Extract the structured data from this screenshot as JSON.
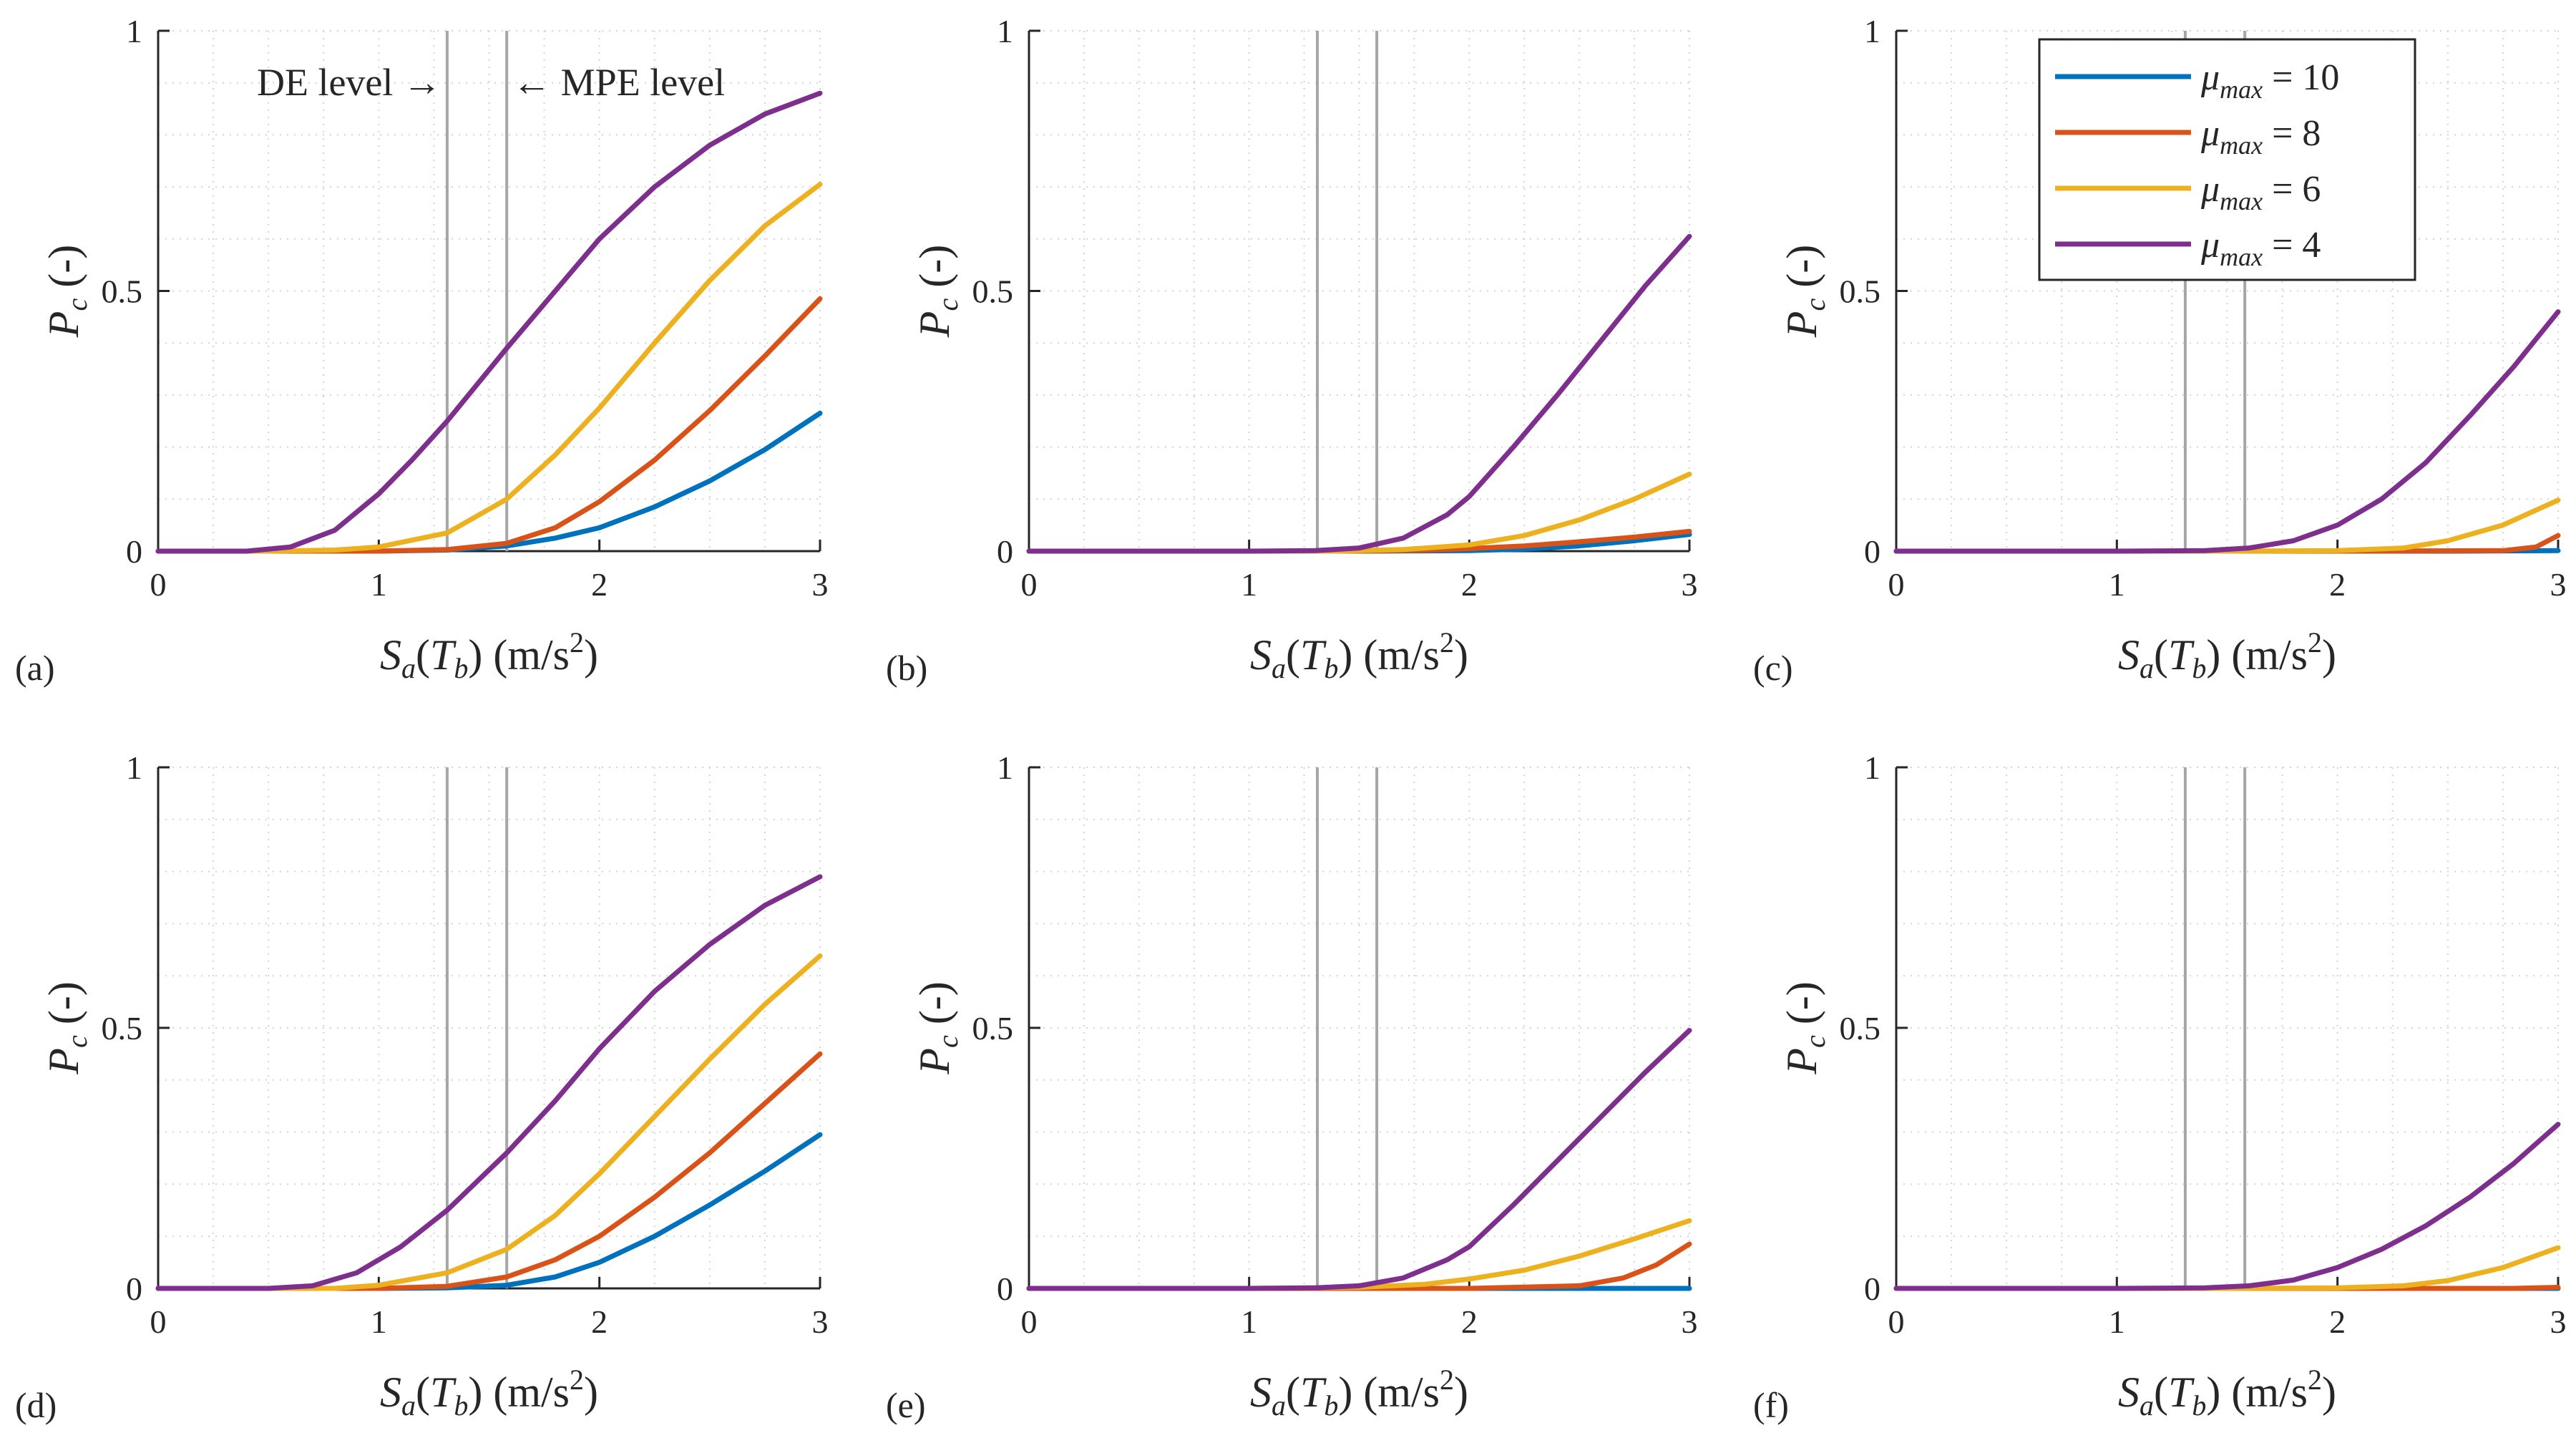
{
  "chart_data": {
    "type": "line",
    "xlim": [
      0,
      3
    ],
    "ylim": [
      0,
      1
    ],
    "x_ticks": [
      "0",
      "1",
      "2",
      "3"
    ],
    "y_ticks": [
      "0",
      "0.5",
      "1"
    ],
    "grid": "dotted",
    "xlabel": {
      "main": "S",
      "sub": "a",
      "paren_open": "(",
      "main2": "T",
      "sub2": "b",
      "paren_close": ")",
      "units_open": "(m/s",
      "units_sup": "2",
      "units_close": ")"
    },
    "ylabel": {
      "main": "P",
      "sub": "c",
      "rest": "(-)"
    },
    "reference_lines": {
      "de_level": 1.31,
      "mpe_level": 1.58
    },
    "annotations": {
      "de_text": "DE level →",
      "mpe_text": "← MPE level"
    },
    "legend": {
      "placement": "top-right of panel (c)",
      "entries": [
        {
          "symbol": "μ",
          "sub": "max",
          "value": "= 10",
          "color": "#0072BD"
        },
        {
          "symbol": "μ",
          "sub": "max",
          "value": "= 8",
          "color": "#D95319"
        },
        {
          "symbol": "μ",
          "sub": "max",
          "value": "= 6",
          "color": "#EDB120"
        },
        {
          "symbol": "μ",
          "sub": "max",
          "value": "= 4",
          "color": "#7E2F8E"
        }
      ]
    },
    "panels": [
      {
        "label": "(a)",
        "series": [
          {
            "name": "mu_max = 10",
            "color": "#0072BD",
            "x": [
              0,
              0.5,
              1.0,
              1.31,
              1.58,
              1.8,
              2.0,
              2.25,
              2.5,
              2.75,
              3.0
            ],
            "y": [
              0,
              0,
              0,
              0.002,
              0.01,
              0.025,
              0.045,
              0.085,
              0.135,
              0.195,
              0.265
            ]
          },
          {
            "name": "mu_max = 8",
            "color": "#D95319",
            "x": [
              0,
              0.5,
              1.0,
              1.31,
              1.58,
              1.8,
              2.0,
              2.25,
              2.5,
              2.75,
              3.0
            ],
            "y": [
              0,
              0,
              0,
              0.003,
              0.015,
              0.045,
              0.095,
              0.175,
              0.27,
              0.375,
              0.485
            ]
          },
          {
            "name": "mu_max = 6",
            "color": "#EDB120",
            "x": [
              0,
              0.5,
              0.8,
              1.0,
              1.31,
              1.58,
              1.8,
              2.0,
              2.25,
              2.5,
              2.75,
              3.0
            ],
            "y": [
              0,
              0,
              0.002,
              0.008,
              0.035,
              0.1,
              0.185,
              0.275,
              0.4,
              0.52,
              0.625,
              0.705
            ]
          },
          {
            "name": "mu_max = 4",
            "color": "#7E2F8E",
            "x": [
              0,
              0.4,
              0.6,
              0.8,
              1.0,
              1.15,
              1.31,
              1.58,
              1.8,
              2.0,
              2.25,
              2.5,
              2.75,
              3.0
            ],
            "y": [
              0,
              0,
              0.008,
              0.04,
              0.11,
              0.175,
              0.25,
              0.39,
              0.5,
              0.6,
              0.7,
              0.78,
              0.84,
              0.88
            ]
          }
        ]
      },
      {
        "label": "(b)",
        "series": [
          {
            "name": "mu_max = 10",
            "color": "#0072BD",
            "x": [
              0,
              1.0,
              1.5,
              2.0,
              2.25,
              2.5,
              2.75,
              3.0
            ],
            "y": [
              0,
              0,
              0,
              0.001,
              0.004,
              0.01,
              0.02,
              0.032
            ]
          },
          {
            "name": "mu_max = 8",
            "color": "#D95319",
            "x": [
              0,
              1.0,
              1.5,
              1.8,
              2.0,
              2.25,
              2.5,
              2.75,
              3.0
            ],
            "y": [
              0,
              0,
              0,
              0.002,
              0.005,
              0.01,
              0.018,
              0.027,
              0.038
            ]
          },
          {
            "name": "mu_max = 6",
            "color": "#EDB120",
            "x": [
              0,
              1.0,
              1.4,
              1.7,
              2.0,
              2.25,
              2.5,
              2.75,
              3.0
            ],
            "y": [
              0,
              0,
              0,
              0.003,
              0.012,
              0.03,
              0.06,
              0.1,
              0.148
            ]
          },
          {
            "name": "mu_max = 4",
            "color": "#7E2F8E",
            "x": [
              0,
              1.0,
              1.3,
              1.5,
              1.7,
              1.9,
              2.0,
              2.2,
              2.4,
              2.6,
              2.8,
              3.0
            ],
            "y": [
              0,
              0,
              0.001,
              0.006,
              0.025,
              0.07,
              0.105,
              0.2,
              0.3,
              0.405,
              0.51,
              0.605
            ]
          }
        ]
      },
      {
        "label": "(c)",
        "series": [
          {
            "name": "mu_max = 10",
            "color": "#0072BD",
            "x": [
              0,
              1.0,
              2.0,
              2.5,
              3.0
            ],
            "y": [
              0,
              0,
              0,
              0,
              0.001
            ]
          },
          {
            "name": "mu_max = 8",
            "color": "#D95319",
            "x": [
              0,
              2.0,
              2.75,
              2.9,
              3.0
            ],
            "y": [
              0,
              0,
              0.001,
              0.008,
              0.03
            ]
          },
          {
            "name": "mu_max = 6",
            "color": "#EDB120",
            "x": [
              0,
              1.5,
              2.0,
              2.3,
              2.5,
              2.75,
              3.0
            ],
            "y": [
              0,
              0,
              0.001,
              0.006,
              0.02,
              0.05,
              0.098
            ]
          },
          {
            "name": "mu_max = 4",
            "color": "#7E2F8E",
            "x": [
              0,
              1.0,
              1.4,
              1.6,
              1.8,
              2.0,
              2.2,
              2.4,
              2.6,
              2.8,
              3.0
            ],
            "y": [
              0,
              0,
              0.001,
              0.006,
              0.02,
              0.05,
              0.1,
              0.17,
              0.26,
              0.355,
              0.46
            ]
          }
        ]
      },
      {
        "label": "(d)",
        "series": [
          {
            "name": "mu_max = 10",
            "color": "#0072BD",
            "x": [
              0,
              1.0,
              1.31,
              1.58,
              1.8,
              2.0,
              2.25,
              2.5,
              2.75,
              3.0
            ],
            "y": [
              0,
              0,
              0.001,
              0.006,
              0.022,
              0.05,
              0.1,
              0.16,
              0.225,
              0.295
            ]
          },
          {
            "name": "mu_max = 8",
            "color": "#D95319",
            "x": [
              0,
              1.0,
              1.31,
              1.58,
              1.8,
              2.0,
              2.25,
              2.5,
              2.75,
              3.0
            ],
            "y": [
              0,
              0,
              0.004,
              0.022,
              0.055,
              0.1,
              0.175,
              0.26,
              0.355,
              0.45
            ]
          },
          {
            "name": "mu_max = 6",
            "color": "#EDB120",
            "x": [
              0,
              0.8,
              1.0,
              1.31,
              1.58,
              1.8,
              2.0,
              2.25,
              2.5,
              2.75,
              3.0
            ],
            "y": [
              0,
              0,
              0.006,
              0.03,
              0.075,
              0.14,
              0.22,
              0.33,
              0.44,
              0.545,
              0.638
            ]
          },
          {
            "name": "mu_max = 4",
            "color": "#7E2F8E",
            "x": [
              0,
              0.5,
              0.7,
              0.9,
              1.1,
              1.31,
              1.58,
              1.8,
              2.0,
              2.25,
              2.5,
              2.75,
              3.0
            ],
            "y": [
              0,
              0,
              0.005,
              0.03,
              0.08,
              0.15,
              0.26,
              0.36,
              0.46,
              0.57,
              0.66,
              0.735,
              0.79
            ]
          }
        ]
      },
      {
        "label": "(e)",
        "series": [
          {
            "name": "mu_max = 10",
            "color": "#0072BD",
            "x": [
              0,
              1.0,
              2.0,
              3.0
            ],
            "y": [
              0,
              0,
              0,
              0
            ]
          },
          {
            "name": "mu_max = 8",
            "color": "#D95319",
            "x": [
              0,
              2.0,
              2.5,
              2.7,
              2.85,
              3.0
            ],
            "y": [
              0,
              0,
              0.005,
              0.02,
              0.045,
              0.085
            ]
          },
          {
            "name": "mu_max = 6",
            "color": "#EDB120",
            "x": [
              0,
              1.0,
              1.5,
              1.8,
              2.0,
              2.25,
              2.5,
              2.75,
              3.0
            ],
            "y": [
              0,
              0,
              0.002,
              0.008,
              0.018,
              0.035,
              0.062,
              0.095,
              0.13
            ]
          },
          {
            "name": "mu_max = 4",
            "color": "#7E2F8E",
            "x": [
              0,
              1.0,
              1.3,
              1.5,
              1.7,
              1.9,
              2.0,
              2.2,
              2.4,
              2.6,
              2.8,
              3.0
            ],
            "y": [
              0,
              0,
              0.001,
              0.005,
              0.02,
              0.055,
              0.08,
              0.16,
              0.245,
              0.33,
              0.415,
              0.495
            ]
          }
        ]
      },
      {
        "label": "(f)",
        "series": [
          {
            "name": "mu_max = 10",
            "color": "#0072BD",
            "x": [
              0,
              1.0,
              2.0,
              3.0
            ],
            "y": [
              0,
              0,
              0,
              0
            ]
          },
          {
            "name": "mu_max = 8",
            "color": "#D95319",
            "x": [
              0,
              2.0,
              2.8,
              3.0
            ],
            "y": [
              0,
              0,
              0,
              0.002
            ]
          },
          {
            "name": "mu_max = 6",
            "color": "#EDB120",
            "x": [
              0,
              1.5,
              2.0,
              2.3,
              2.5,
              2.75,
              3.0
            ],
            "y": [
              0,
              0,
              0.001,
              0.005,
              0.015,
              0.04,
              0.078
            ]
          },
          {
            "name": "mu_max = 4",
            "color": "#7E2F8E",
            "x": [
              0,
              1.0,
              1.4,
              1.6,
              1.8,
              2.0,
              2.2,
              2.4,
              2.6,
              2.8,
              3.0
            ],
            "y": [
              0,
              0,
              0.001,
              0.005,
              0.016,
              0.04,
              0.075,
              0.12,
              0.175,
              0.24,
              0.315
            ]
          }
        ]
      }
    ]
  }
}
